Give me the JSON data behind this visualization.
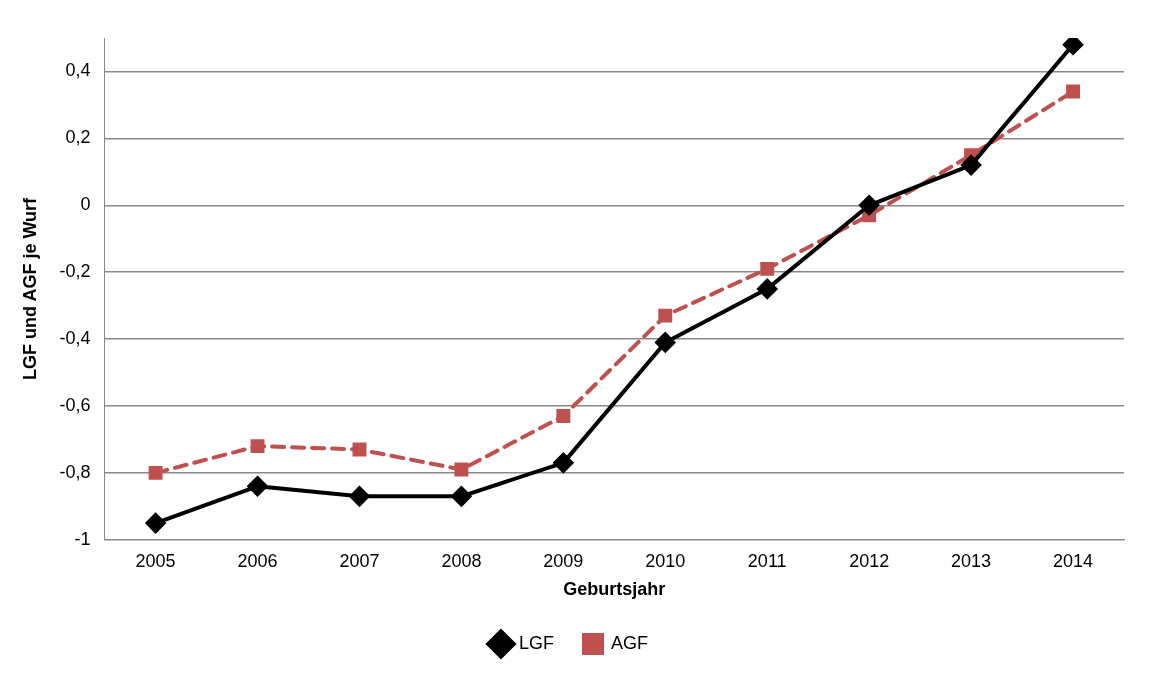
{
  "chart_data": {
    "type": "line",
    "xlabel": "Geburtsjahr",
    "ylabel": "LGF und AGF je Wurf",
    "categories": [
      "2005",
      "2006",
      "2007",
      "2008",
      "2009",
      "2010",
      "2011",
      "2012",
      "2013",
      "2014"
    ],
    "series": [
      {
        "name": "LGF",
        "color": "#000000",
        "marker": "diamond",
        "line_style": "solid",
        "values": [
          -0.95,
          -0.84,
          -0.87,
          -0.87,
          -0.77,
          -0.41,
          -0.25,
          0,
          0.12,
          0.48
        ]
      },
      {
        "name": "AGF",
        "color": "#c0504d",
        "marker": "square",
        "line_style": "dashed",
        "values": [
          -0.8,
          -0.72,
          -0.73,
          -0.79,
          -0.63,
          -0.33,
          -0.19,
          -0.03,
          0.15,
          0.34
        ]
      }
    ],
    "ylim": [
      -1,
      0.5
    ],
    "yticks": [
      {
        "value": -1,
        "label": "-1"
      },
      {
        "value": -0.8,
        "label": "-0,8"
      },
      {
        "value": -0.6,
        "label": "-0,6"
      },
      {
        "value": -0.4,
        "label": "-0,4"
      },
      {
        "value": -0.2,
        "label": "-0,2"
      },
      {
        "value": 0,
        "label": "0"
      },
      {
        "value": 0.2,
        "label": "0,2"
      },
      {
        "value": 0.4,
        "label": "0,4"
      }
    ],
    "grid": "y",
    "legend": "bottom"
  }
}
